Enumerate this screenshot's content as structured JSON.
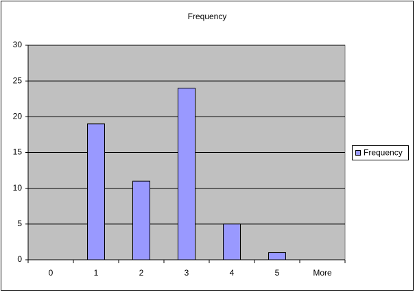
{
  "chart_data": {
    "type": "bar",
    "title": "Frequency",
    "categories": [
      "0",
      "1",
      "2",
      "3",
      "4",
      "5",
      "More"
    ],
    "series": [
      {
        "name": "Frequency",
        "color": "#9999ff",
        "values": [
          0,
          19,
          11,
          24,
          5,
          1,
          0
        ]
      }
    ],
    "ylim": [
      0,
      30
    ],
    "yticks": [
      0,
      5,
      10,
      15,
      20,
      25,
      30
    ],
    "grid": true,
    "legend": "right"
  }
}
